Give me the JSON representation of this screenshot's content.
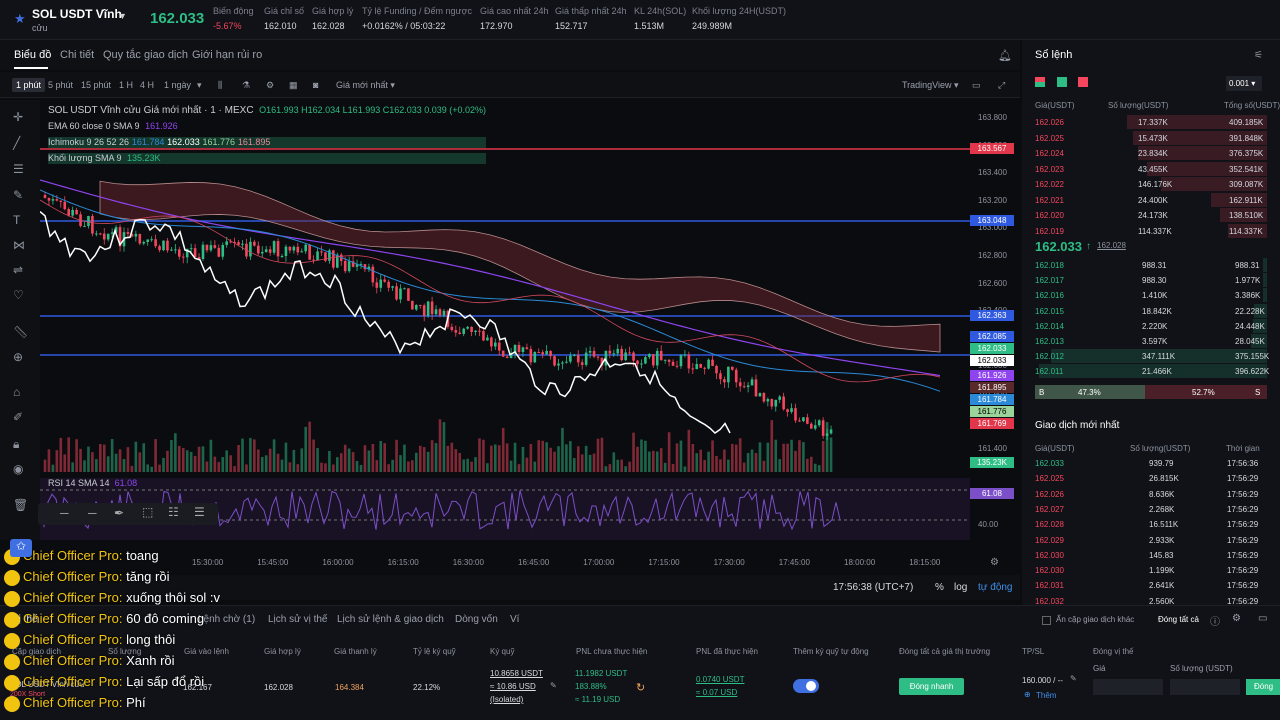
{
  "topbar": {
    "symbol": "SOL USDT Vĩnh",
    "symbol_sub": "cửu",
    "price": "162.033",
    "stats": [
      {
        "label": "Biến động",
        "value": "-5.67%",
        "color": "#f6465d"
      },
      {
        "label": "Giá chỉ số",
        "value": "162.010"
      },
      {
        "label": "Giá hợp lý",
        "value": "162.028"
      },
      {
        "label": "Tỷ lệ Funding / Đếm ngược",
        "value": "+0.0162% / 05:03:22"
      },
      {
        "label": "Giá cao nhất 24h",
        "value": "172.970"
      },
      {
        "label": "Giá thấp nhất 24h",
        "value": "152.717"
      },
      {
        "label": "KL 24h(SOL)",
        "value": "1.513M"
      },
      {
        "label": "Khối lượng 24H(USDT)",
        "value": "249.989M"
      }
    ]
  },
  "tabs": [
    "Biểu đồ",
    "Chi tiết",
    "Quy tắc giao dịch",
    "Giới hạn rủi ro"
  ],
  "tools": {
    "intervals": [
      "1 phút",
      "5 phút",
      "15 phút",
      "1 H",
      "4 H",
      "1 ngày"
    ],
    "price_type": "Giá mới nhất",
    "provider": "TradingView"
  },
  "legend": {
    "title": "SOL USDT Vĩnh cửu Giá mới nhất · 1 · MEXC",
    "ohlc": "O161.993 H162.034 L161.993 C162.033 0.039 (+0.02%)",
    "ema": "EMA 60 close 0 SMA 9",
    "ema_val": "161.926",
    "ichimoku": "Ichimoku 9 26 52 26",
    "ichi_vals": [
      "161.784",
      "162.033",
      "161.776",
      "161.895"
    ],
    "vol": "Khối lượng SMA 9",
    "vol_val": "135.23K",
    "rsi": "RSI 14 SMA 14",
    "rsi_val": "61.08"
  },
  "price_axis": [
    "163.800",
    "163.600",
    "163.400",
    "163.200",
    "163.000",
    "162.800",
    "162.600",
    "162.400",
    "162.200",
    "162.000",
    "161.800",
    "161.600",
    "161.400"
  ],
  "price_tags": [
    {
      "v": "163.567",
      "c": "#e2364a",
      "y": 149
    },
    {
      "v": "163.048",
      "c": "#2f5ae0",
      "y": 221
    },
    {
      "v": "162.363",
      "c": "#2f5ae0",
      "y": 316
    },
    {
      "v": "162.085",
      "c": "#2f5ae0",
      "y": 337
    },
    {
      "v": "162.033",
      "c": "#2ebd85",
      "y": 349
    },
    {
      "v": "162.033",
      "c": "#ffffff",
      "y": 361
    },
    {
      "v": "161.926",
      "c": "#8e44ef",
      "y": 376
    },
    {
      "v": "161.895",
      "c": "#5a2a2a",
      "y": 388
    },
    {
      "v": "161.784",
      "c": "#2a8ad8",
      "y": 400
    },
    {
      "v": "161.776",
      "c": "#9bd49a",
      "y": 412
    },
    {
      "v": "161.769",
      "c": "#e2364a",
      "y": 424
    },
    {
      "v": "135.23K",
      "c": "#2ebd85",
      "y": 463
    },
    {
      "v": "61.08",
      "c": "#7b4fc8",
      "y": 494
    }
  ],
  "rsi_ticks": [
    "40.00"
  ],
  "time_ticks": [
    "15:30:00",
    "15:45:00",
    "16:00:00",
    "16:15:00",
    "16:30:00",
    "16:45:00",
    "17:00:00",
    "17:15:00",
    "17:30:00",
    "17:45:00",
    "18:00:00",
    "18:15:00"
  ],
  "bottom": {
    "time": "17:56:38 (UTC+7)",
    "pct": "%",
    "log": "log",
    "auto": "tự động"
  },
  "orderbook": {
    "title": "Sổ lệnh",
    "precision": "0.001",
    "headers": [
      "Giá(USDT)",
      "Số lượng(USDT)",
      "Tổng số(USDT)"
    ],
    "asks": [
      [
        "162.026",
        "17.337K",
        "409.185K"
      ],
      [
        "162.025",
        "15.473K",
        "391.848K"
      ],
      [
        "162.024",
        "23.834K",
        "376.375K"
      ],
      [
        "162.023",
        "43.455K",
        "352.541K"
      ],
      [
        "162.022",
        "146.176K",
        "309.087K"
      ],
      [
        "162.021",
        "24.400K",
        "162.911K"
      ],
      [
        "162.020",
        "24.173K",
        "138.510K"
      ],
      [
        "162.019",
        "114.337K",
        "114.337K"
      ]
    ],
    "last": "162.033",
    "last_ref": "162.028",
    "bids": [
      [
        "162.018",
        "988.31",
        "988.31"
      ],
      [
        "162.017",
        "988.30",
        "1.977K"
      ],
      [
        "162.016",
        "1.410K",
        "3.386K"
      ],
      [
        "162.015",
        "18.842K",
        "22.228K"
      ],
      [
        "162.014",
        "2.220K",
        "24.448K"
      ],
      [
        "162.013",
        "3.597K",
        "28.045K"
      ],
      [
        "162.012",
        "347.111K",
        "375.155K"
      ],
      [
        "162.011",
        "21.466K",
        "396.622K"
      ]
    ],
    "b_label": "B",
    "b_pct": "47.3%",
    "s_pct": "52.7%",
    "s_label": "S"
  },
  "trades": {
    "title": "Giao dịch mới nhất",
    "headers": [
      "Giá(USDT)",
      "Số lượng(USDT)",
      "Thời gian"
    ],
    "rows": [
      [
        "162.033",
        "939.79",
        "17:56:36"
      ],
      [
        "162.025",
        "26.815K",
        "17:56:29"
      ],
      [
        "162.026",
        "8.636K",
        "17:56:29"
      ],
      [
        "162.027",
        "2.268K",
        "17:56:29"
      ],
      [
        "162.028",
        "16.511K",
        "17:56:29"
      ],
      [
        "162.029",
        "2.933K",
        "17:56:29"
      ],
      [
        "162.030",
        "145.83",
        "17:56:29"
      ],
      [
        "162.030",
        "1.199K",
        "17:56:29"
      ],
      [
        "162.031",
        "2.641K",
        "17:56:29"
      ],
      [
        "162.032",
        "2.560K",
        "17:56:29"
      ]
    ]
  },
  "positions": {
    "tabs": [
      "Vị thế",
      "Lệnh chờ (1)",
      "Lịch sử vị thế",
      "Lịch sử lệnh & giao dịch",
      "Dòng vốn",
      "Ví"
    ],
    "hide_label": "Ẩn cặp giao dịch khác",
    "close_all": "Đóng tất cả",
    "headers": [
      "Cặp giao dịch",
      "Số lượng",
      "Giá vào lệnh",
      "Giá hợp lý",
      "Giá thanh lý",
      "Tỷ lệ ký quỹ",
      "Ký quỹ",
      "PNL chưa thực hiện",
      "PNL đã thực hiện",
      "Thêm ký quỹ tự động",
      "Đóng tất cả giá thị trường",
      "TP/SL",
      "Đóng vị thế"
    ],
    "row": {
      "pair": "SOL USDT Vĩnh cửu",
      "side": "200X Short",
      "entry": "162.167",
      "fair": "162.028",
      "liq": "164.384",
      "ratio": "22.12%",
      "margin1": "10.8658 USDT",
      "margin2": "≈ 10.86 USD",
      "margin3": "(Isolated)",
      "pnl1": "11.1982 USDT",
      "pnl2": "183.88%",
      "pnl3": "≈ 11.19 USD",
      "rpnl1": "0.0740 USDT",
      "rpnl2": "≈ 0.07 USD",
      "fast": "Đóng nhanh",
      "tp": "160.000 / --",
      "add": "Thêm",
      "price_ph": "Giá",
      "qty_ph": "Số lượng (USDT)",
      "close": "Đóng"
    }
  },
  "chat": [
    {
      "name": "Chief Officer Pro:",
      "msg": "toang"
    },
    {
      "name": "Chief Officer Pro:",
      "msg": "tăng rồi"
    },
    {
      "name": "Chief Officer Pro:",
      "msg": "xuống thôi sol :v"
    },
    {
      "name": "Chief Officer Pro:",
      "msg": "60 đô coming"
    },
    {
      "name": "Chief Officer Pro:",
      "msg": "long thôi"
    },
    {
      "name": "Chief Officer Pro:",
      "msg": "Xanh rồi"
    },
    {
      "name": "Chief Officer Pro:",
      "msg": "Lại sấp đổ rồi"
    },
    {
      "name": "Chief Officer Pro:",
      "msg": "Phí"
    }
  ],
  "colors": {
    "up": "#2ebd85",
    "down": "#f6465d",
    "accent": "#2f5ae0"
  }
}
